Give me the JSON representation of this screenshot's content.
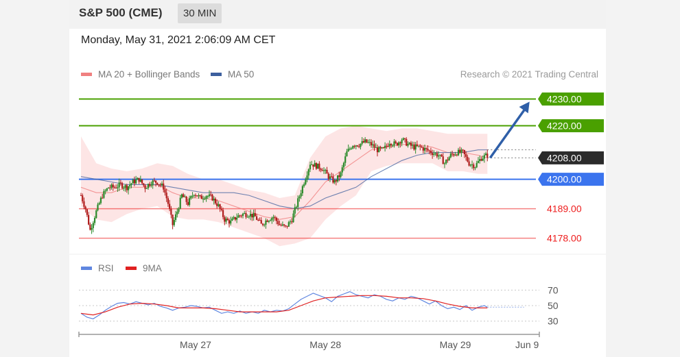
{
  "header": {
    "title": "S&P 500 (CME)",
    "interval": "30 MIN"
  },
  "timestamp": "Monday, May 31, 2021 2:06:09 AM CET",
  "credit": "Research © 2021 Trading Central",
  "colors": {
    "ma20": "#f08080",
    "ma50": "#3d5f9e",
    "bands": "#fde0e0",
    "green_level": "#4aa000",
    "blue_level": "#3b74ee",
    "red_level": "#ee1c1c",
    "current": "#2b2b2b",
    "candle_up": "#2a8a2a",
    "candle_down": "#b01c1c",
    "arrow": "#2f5fa8",
    "rsi": "#5f86e0",
    "rsi_ma": "#e02020"
  },
  "chart_data": [
    {
      "type": "candlestick",
      "title": "",
      "legend": [
        {
          "label": "MA 20 + Bollinger Bands",
          "color": "#f08080"
        },
        {
          "label": "MA 50",
          "color": "#3d5f9e"
        }
      ],
      "legend_placement": "top-left",
      "ylim": [
        4172,
        4236
      ],
      "xticks": [
        "May 27",
        "May 28",
        "May 29",
        "Jun 9"
      ],
      "levels": [
        {
          "value": 4230.0,
          "label": "4230.00",
          "kind": "resistance",
          "color": "#4aa000",
          "badge": true
        },
        {
          "value": 4220.0,
          "label": "4220.00",
          "kind": "resistance",
          "color": "#4aa000",
          "badge": true
        },
        {
          "value": 4208.0,
          "label": "4208.00",
          "kind": "current",
          "color": "#2b2b2b",
          "badge": true
        },
        {
          "value": 4200.0,
          "label": "4200.00",
          "kind": "pivot",
          "color": "#3b74ee",
          "badge": true
        },
        {
          "value": 4189.0,
          "label": "4189.00",
          "kind": "support",
          "color": "#ee1c1c",
          "badge": false
        },
        {
          "value": 4178.0,
          "label": "4178.00",
          "kind": "support",
          "color": "#ee1c1c",
          "badge": false
        }
      ],
      "close_path": [
        [
          0,
          4194
        ],
        [
          3,
          4189
        ],
        [
          6,
          4181
        ],
        [
          10,
          4188
        ],
        [
          14,
          4194
        ],
        [
          18,
          4197
        ],
        [
          22,
          4197
        ],
        [
          26,
          4198
        ],
        [
          30,
          4197
        ],
        [
          34,
          4199
        ],
        [
          38,
          4200
        ],
        [
          42,
          4197
        ],
        [
          46,
          4199
        ],
        [
          50,
          4199
        ],
        [
          54,
          4197
        ],
        [
          57,
          4191
        ],
        [
          60,
          4183
        ],
        [
          63,
          4188
        ],
        [
          66,
          4194
        ],
        [
          70,
          4191
        ],
        [
          74,
          4195
        ],
        [
          78,
          4193
        ],
        [
          82,
          4194
        ],
        [
          86,
          4193
        ],
        [
          90,
          4190
        ],
        [
          94,
          4185
        ],
        [
          98,
          4184
        ],
        [
          102,
          4186
        ],
        [
          106,
          4187
        ],
        [
          110,
          4187
        ],
        [
          114,
          4186
        ],
        [
          118,
          4183
        ],
        [
          122,
          4185
        ],
        [
          126,
          4186
        ],
        [
          130,
          4183
        ],
        [
          134,
          4182
        ],
        [
          138,
          4185
        ],
        [
          142,
          4192
        ],
        [
          146,
          4199
        ],
        [
          150,
          4206
        ],
        [
          154,
          4205
        ],
        [
          158,
          4204
        ],
        [
          162,
          4201
        ],
        [
          166,
          4199
        ],
        [
          170,
          4202
        ],
        [
          174,
          4210
        ],
        [
          178,
          4213
        ],
        [
          182,
          4213
        ],
        [
          186,
          4214
        ],
        [
          190,
          4213
        ],
        [
          194,
          4211
        ],
        [
          198,
          4211
        ],
        [
          202,
          4214
        ],
        [
          206,
          4213
        ],
        [
          210,
          4215
        ],
        [
          214,
          4213
        ],
        [
          218,
          4212
        ],
        [
          222,
          4212
        ],
        [
          226,
          4211
        ],
        [
          230,
          4210
        ],
        [
          234,
          4209
        ],
        [
          238,
          4206
        ],
        [
          242,
          4209
        ],
        [
          246,
          4210
        ],
        [
          250,
          4210
        ],
        [
          254,
          4206
        ],
        [
          258,
          4205
        ],
        [
          262,
          4208
        ],
        [
          266,
          4209
        ]
      ],
      "ma20": [
        [
          0,
          4197
        ],
        [
          10,
          4195
        ],
        [
          20,
          4195
        ],
        [
          30,
          4197
        ],
        [
          40,
          4197
        ],
        [
          50,
          4198
        ],
        [
          60,
          4195
        ],
        [
          70,
          4193
        ],
        [
          80,
          4193
        ],
        [
          90,
          4192
        ],
        [
          100,
          4190
        ],
        [
          110,
          4188
        ],
        [
          120,
          4186
        ],
        [
          130,
          4185
        ],
        [
          140,
          4186
        ],
        [
          150,
          4192
        ],
        [
          160,
          4199
        ],
        [
          170,
          4203
        ],
        [
          180,
          4207
        ],
        [
          190,
          4211
        ],
        [
          200,
          4212
        ],
        [
          210,
          4213
        ],
        [
          220,
          4213
        ],
        [
          230,
          4212
        ],
        [
          240,
          4210
        ],
        [
          250,
          4210
        ],
        [
          260,
          4209
        ],
        [
          266,
          4208
        ]
      ],
      "ma50": [
        [
          0,
          4201
        ],
        [
          10,
          4200
        ],
        [
          20,
          4199
        ],
        [
          30,
          4198
        ],
        [
          40,
          4198
        ],
        [
          50,
          4198
        ],
        [
          60,
          4197
        ],
        [
          70,
          4196
        ],
        [
          80,
          4195
        ],
        [
          90,
          4195
        ],
        [
          100,
          4195
        ],
        [
          110,
          4194
        ],
        [
          120,
          4192
        ],
        [
          130,
          4190
        ],
        [
          140,
          4189
        ],
        [
          150,
          4190
        ],
        [
          160,
          4193
        ],
        [
          170,
          4195
        ],
        [
          180,
          4197
        ],
        [
          190,
          4201
        ],
        [
          200,
          4204
        ],
        [
          210,
          4207
        ],
        [
          220,
          4209
        ],
        [
          230,
          4210
        ],
        [
          240,
          4210
        ],
        [
          250,
          4210
        ],
        [
          260,
          4211
        ],
        [
          266,
          4211
        ]
      ],
      "band_upper": [
        [
          0,
          4216
        ],
        [
          10,
          4206
        ],
        [
          20,
          4204
        ],
        [
          30,
          4203
        ],
        [
          40,
          4204
        ],
        [
          50,
          4206
        ],
        [
          60,
          4205
        ],
        [
          70,
          4202
        ],
        [
          80,
          4200
        ],
        [
          90,
          4200
        ],
        [
          100,
          4198
        ],
        [
          110,
          4196
        ],
        [
          120,
          4195
        ],
        [
          130,
          4193
        ],
        [
          140,
          4194
        ],
        [
          150,
          4208
        ],
        [
          160,
          4216
        ],
        [
          170,
          4219
        ],
        [
          180,
          4220
        ],
        [
          190,
          4219
        ],
        [
          200,
          4218
        ],
        [
          210,
          4219
        ],
        [
          220,
          4219
        ],
        [
          230,
          4218
        ],
        [
          240,
          4217
        ],
        [
          250,
          4217
        ],
        [
          260,
          4217
        ],
        [
          266,
          4217
        ]
      ],
      "band_lower": [
        [
          0,
          4190
        ],
        [
          10,
          4185
        ],
        [
          20,
          4184
        ],
        [
          30,
          4187
        ],
        [
          40,
          4189
        ],
        [
          50,
          4190
        ],
        [
          60,
          4186
        ],
        [
          70,
          4185
        ],
        [
          80,
          4185
        ],
        [
          90,
          4184
        ],
        [
          100,
          4182
        ],
        [
          110,
          4180
        ],
        [
          120,
          4178
        ],
        [
          130,
          4175
        ],
        [
          140,
          4176
        ],
        [
          150,
          4178
        ],
        [
          160,
          4185
        ],
        [
          170,
          4190
        ],
        [
          180,
          4194
        ],
        [
          190,
          4203
        ],
        [
          200,
          4205
        ],
        [
          210,
          4206
        ],
        [
          220,
          4206
        ],
        [
          230,
          4206
        ],
        [
          240,
          4203
        ],
        [
          250,
          4203
        ],
        [
          260,
          4202
        ],
        [
          266,
          4202
        ]
      ],
      "forecast_arrow": {
        "from": [
          266,
          4208
        ],
        "to": [
          290,
          4229
        ]
      },
      "x_max": 300,
      "xtick_positions": [
        75,
        160,
        245,
        292
      ]
    },
    {
      "type": "line",
      "title": "",
      "legend": [
        {
          "label": "RSI",
          "color": "#5f86e0"
        },
        {
          "label": "9MA",
          "color": "#e02020"
        }
      ],
      "legend_placement": "top-left",
      "ylim": [
        20,
        80
      ],
      "yticks": [
        "70",
        "50",
        "30"
      ],
      "guides": [
        70,
        50,
        30
      ],
      "rsi": [
        [
          0,
          40
        ],
        [
          4,
          35
        ],
        [
          8,
          33
        ],
        [
          12,
          38
        ],
        [
          16,
          44
        ],
        [
          20,
          49
        ],
        [
          24,
          53
        ],
        [
          28,
          54
        ],
        [
          32,
          52
        ],
        [
          36,
          55
        ],
        [
          40,
          53
        ],
        [
          44,
          51
        ],
        [
          48,
          53
        ],
        [
          52,
          49
        ],
        [
          56,
          47
        ],
        [
          60,
          44
        ],
        [
          64,
          47
        ],
        [
          68,
          48
        ],
        [
          72,
          50
        ],
        [
          76,
          49
        ],
        [
          80,
          47
        ],
        [
          84,
          48
        ],
        [
          88,
          44
        ],
        [
          92,
          40
        ],
        [
          96,
          42
        ],
        [
          100,
          40
        ],
        [
          104,
          43
        ],
        [
          108,
          40
        ],
        [
          112,
          42
        ],
        [
          116,
          40
        ],
        [
          120,
          44
        ],
        [
          124,
          42
        ],
        [
          128,
          44
        ],
        [
          132,
          43
        ],
        [
          136,
          46
        ],
        [
          140,
          52
        ],
        [
          144,
          58
        ],
        [
          148,
          62
        ],
        [
          152,
          66
        ],
        [
          156,
          63
        ],
        [
          160,
          60
        ],
        [
          164,
          55
        ],
        [
          168,
          62
        ],
        [
          172,
          65
        ],
        [
          176,
          68
        ],
        [
          180,
          64
        ],
        [
          184,
          62
        ],
        [
          188,
          60
        ],
        [
          192,
          64
        ],
        [
          196,
          62
        ],
        [
          200,
          58
        ],
        [
          204,
          56
        ],
        [
          208,
          60
        ],
        [
          212,
          58
        ],
        [
          216,
          62
        ],
        [
          220,
          60
        ],
        [
          224,
          56
        ],
        [
          228,
          52
        ],
        [
          232,
          56
        ],
        [
          236,
          50
        ],
        [
          240,
          46
        ],
        [
          244,
          48
        ],
        [
          248,
          45
        ],
        [
          252,
          50
        ],
        [
          256,
          44
        ],
        [
          260,
          48
        ],
        [
          264,
          50
        ],
        [
          266,
          48
        ]
      ],
      "rsi_ma": [
        [
          0,
          40
        ],
        [
          8,
          38
        ],
        [
          16,
          42
        ],
        [
          24,
          48
        ],
        [
          32,
          52
        ],
        [
          40,
          53
        ],
        [
          48,
          52
        ],
        [
          56,
          50
        ],
        [
          64,
          47
        ],
        [
          72,
          47
        ],
        [
          80,
          47
        ],
        [
          88,
          46
        ],
        [
          96,
          44
        ],
        [
          104,
          42
        ],
        [
          112,
          42
        ],
        [
          120,
          42
        ],
        [
          128,
          42
        ],
        [
          136,
          44
        ],
        [
          144,
          50
        ],
        [
          152,
          56
        ],
        [
          160,
          60
        ],
        [
          168,
          61
        ],
        [
          176,
          62
        ],
        [
          184,
          63
        ],
        [
          192,
          63
        ],
        [
          200,
          62
        ],
        [
          208,
          60
        ],
        [
          216,
          60
        ],
        [
          224,
          59
        ],
        [
          232,
          56
        ],
        [
          240,
          52
        ],
        [
          248,
          49
        ],
        [
          256,
          47
        ],
        [
          264,
          47
        ],
        [
          266,
          47
        ]
      ],
      "rsi_forecast": [
        [
          266,
          48
        ],
        [
          290,
          48
        ]
      ]
    }
  ]
}
